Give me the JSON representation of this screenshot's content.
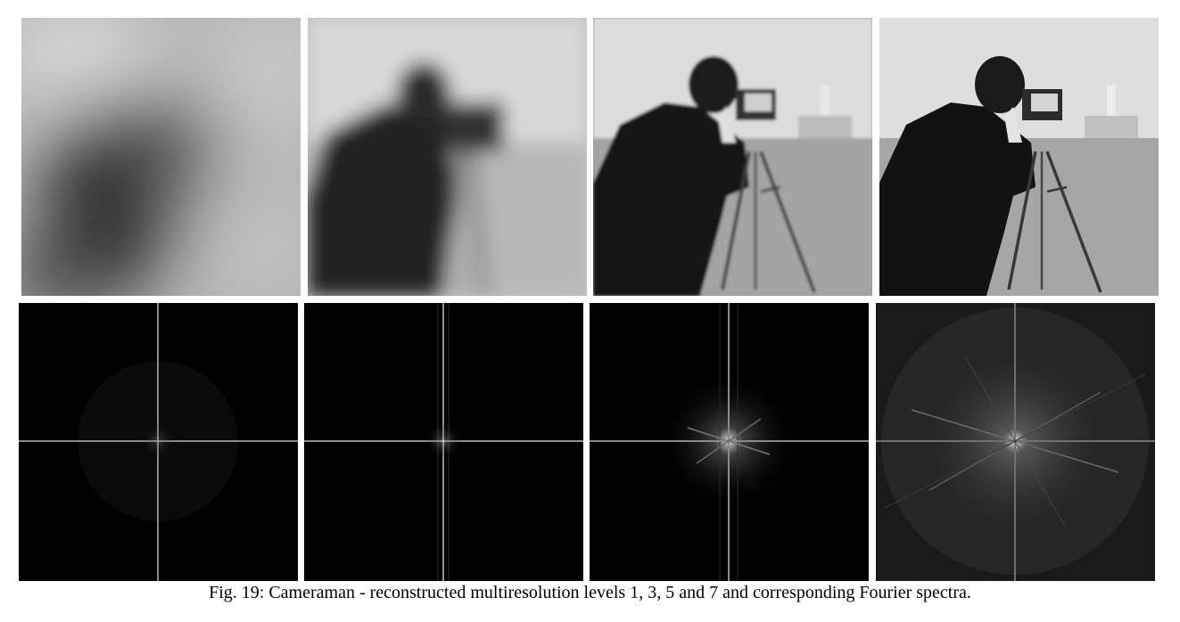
{
  "figure": {
    "caption": "Fig. 19: Cameraman - reconstructed multiresolution levels 1, 3, 5 and 7 and corresponding Fourier spectra.",
    "levels": [
      1,
      3,
      5,
      7
    ],
    "panels_top": [
      {
        "level": 1,
        "content": "reconstructed image"
      },
      {
        "level": 3,
        "content": "reconstructed image"
      },
      {
        "level": 5,
        "content": "reconstructed image"
      },
      {
        "level": 7,
        "content": "reconstructed image"
      }
    ],
    "panels_bottom": [
      {
        "level": 1,
        "content": "Fourier spectrum"
      },
      {
        "level": 3,
        "content": "Fourier spectrum"
      },
      {
        "level": 5,
        "content": "Fourier spectrum"
      },
      {
        "level": 7,
        "content": "Fourier spectrum"
      }
    ]
  }
}
